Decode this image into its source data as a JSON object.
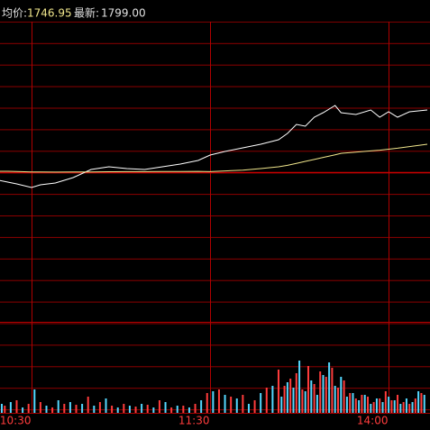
{
  "chart_data": {
    "type": "line",
    "stats": {
      "names": [
        "均价:",
        "最新:"
      ],
      "values": [
        1746.95,
        1799
      ],
      "value_labels": [
        "1746.95",
        "1799.00"
      ]
    },
    "xlim": [
      -10.6,
      133.9
    ],
    "xticks": [
      {
        "value": 0,
        "label": "10:30"
      },
      {
        "value": 60,
        "label": "11:30"
      },
      {
        "value": 120,
        "label": "14:00"
      }
    ],
    "ylim": [
      1477.1,
      1966.2
    ],
    "baseline": 1704.5,
    "series": [
      {
        "color": "#ffffff",
        "x": [
          -11,
          -8,
          -5,
          0,
          3,
          8,
          14,
          20,
          26,
          32,
          38,
          44,
          50,
          56,
          60,
          65,
          71,
          77,
          83,
          86,
          89,
          92,
          95,
          98,
          102,
          104,
          109,
          114,
          117,
          120,
          123,
          127,
          133
        ],
        "values": [
          1692.2,
          1689.4,
          1686.7,
          1681.2,
          1685.3,
          1688.1,
          1696.3,
          1708.6,
          1712.7,
          1710.0,
          1708.6,
          1712.7,
          1716.8,
          1722.3,
          1730.5,
          1736.0,
          1741.5,
          1747.0,
          1753.8,
          1763.4,
          1777.1,
          1774.4,
          1788.1,
          1794.9,
          1805.9,
          1794.9,
          1792.2,
          1799.0,
          1788.1,
          1796.3,
          1788.1,
          1796.3,
          1799.0
        ]
      },
      {
        "color": "#f0e68c",
        "x": [
          -11,
          -8,
          -5,
          0,
          3,
          8,
          14,
          20,
          26,
          32,
          38,
          44,
          50,
          56,
          60,
          65,
          71,
          77,
          83,
          86,
          89,
          92,
          95,
          98,
          102,
          104,
          109,
          114,
          117,
          120,
          123,
          127,
          133
        ],
        "values": [
          1705.9,
          1705.9,
          1705.5,
          1705.0,
          1704.9,
          1704.7,
          1704.8,
          1705.0,
          1705.2,
          1705.3,
          1705.4,
          1705.5,
          1705.6,
          1705.7,
          1705.4,
          1706.5,
          1707.5,
          1710.0,
          1712.7,
          1715.0,
          1718.0,
          1721.0,
          1723.8,
          1727.0,
          1731.0,
          1733.2,
          1735.0,
          1736.9,
          1738.0,
          1739.5,
          1741.0,
          1743.5,
          1746.95
        ]
      }
    ],
    "volume": {
      "ylim": [
        0,
        100
      ],
      "series": [
        {
          "color": "#ff3c3c",
          "x": [
            -9,
            -5,
            -1,
            3,
            7,
            11,
            15,
            19,
            23,
            27,
            31,
            35,
            39,
            43,
            47,
            51,
            55,
            59,
            63,
            67,
            71,
            75,
            79,
            83,
            85,
            87,
            89,
            91,
            93,
            95,
            97,
            99,
            101,
            103,
            105,
            107,
            109,
            111,
            113,
            115,
            117,
            119,
            121,
            123,
            125,
            127,
            129,
            131
          ],
          "values": [
            8,
            14,
            10,
            12,
            6,
            10,
            9,
            18,
            12,
            8,
            10,
            7,
            9,
            14,
            6,
            8,
            10,
            22,
            26,
            18,
            20,
            14,
            28,
            48,
            30,
            38,
            44,
            26,
            52,
            32,
            46,
            40,
            50,
            28,
            36,
            22,
            16,
            20,
            18,
            12,
            16,
            24,
            14,
            20,
            12,
            10,
            16,
            22
          ]
        },
        {
          "color": "#54d8ff",
          "x": [
            -10,
            -7,
            -3,
            1,
            5,
            9,
            13,
            17,
            21,
            25,
            29,
            33,
            37,
            41,
            45,
            49,
            53,
            57,
            61,
            65,
            69,
            73,
            77,
            81,
            84,
            86,
            88,
            90,
            92,
            94,
            96,
            98,
            100,
            102,
            104,
            106,
            108,
            110,
            112,
            114,
            116,
            118,
            120,
            122,
            124,
            126,
            128,
            130,
            132
          ],
          "values": [
            10,
            12,
            6,
            26,
            8,
            14,
            12,
            10,
            8,
            16,
            6,
            8,
            10,
            6,
            12,
            8,
            6,
            14,
            24,
            20,
            16,
            10,
            22,
            30,
            18,
            34,
            28,
            58,
            24,
            36,
            20,
            42,
            56,
            30,
            40,
            18,
            22,
            14,
            20,
            10,
            16,
            12,
            18,
            14,
            10,
            16,
            12,
            24,
            20
          ]
        }
      ]
    }
  }
}
